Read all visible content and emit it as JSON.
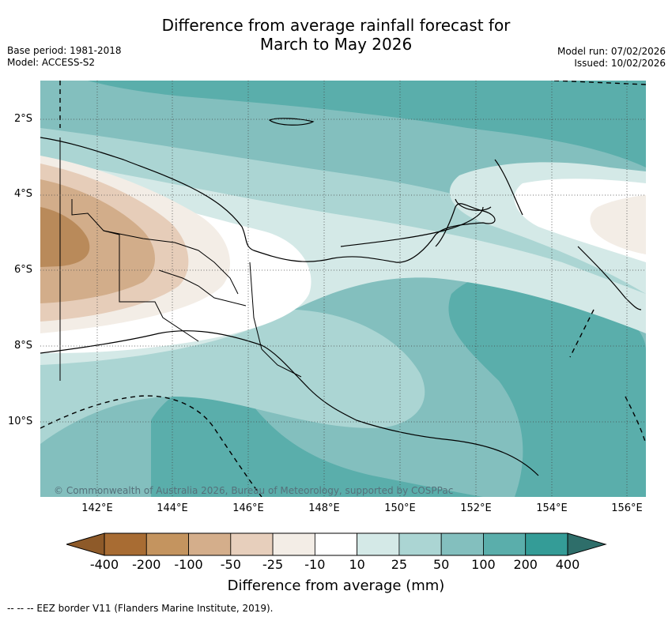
{
  "title": {
    "line1": "Difference from average rainfall forecast for",
    "line2": "March to May 2026"
  },
  "meta": {
    "base_period": "Base period: 1981-2018",
    "model": "Model: ACCESS-S2",
    "model_run": "Model run: 07/02/2026",
    "issued": "Issued: 10/02/2026"
  },
  "map": {
    "copyright": "© Commonwealth of Australia 2026, Bureau of Meteorology, supported by COSPPac",
    "lat_labels": [
      "2°S",
      "4°S",
      "6°S",
      "8°S",
      "10°S"
    ],
    "lon_labels": [
      "142°E",
      "144°E",
      "146°E",
      "148°E",
      "150°E",
      "152°E",
      "154°E",
      "156°E"
    ]
  },
  "legend": {
    "ticks": [
      "-400",
      "-200",
      "-100",
      "-50",
      "-25",
      "-10",
      "10",
      "25",
      "50",
      "100",
      "200",
      "400"
    ],
    "colors": [
      "#a86c33",
      "#c4945f",
      "#d4ae8b",
      "#e7cfbc",
      "#f3ede6",
      "#ffffff",
      "#d4e9e7",
      "#abd5d3",
      "#83bfbe",
      "#5aaeab",
      "#349c97",
      "#2e7c78"
    ],
    "title": "Difference from average (mm)"
  },
  "palette": {
    "dry_strong": "#b98a5a",
    "dry": "#d2ad8a",
    "dry_light": "#e6cdb9",
    "dry_faint": "#f3ede6",
    "neutral": "#ffffff",
    "wet_faint": "#d4e9e7",
    "wet_light": "#abd5d3",
    "wet": "#83bfbe",
    "wet_strong": "#5aaeab"
  },
  "eez_note": "--  --  -- EEZ border V11 (Flanders Marine Institute, 2019)."
}
